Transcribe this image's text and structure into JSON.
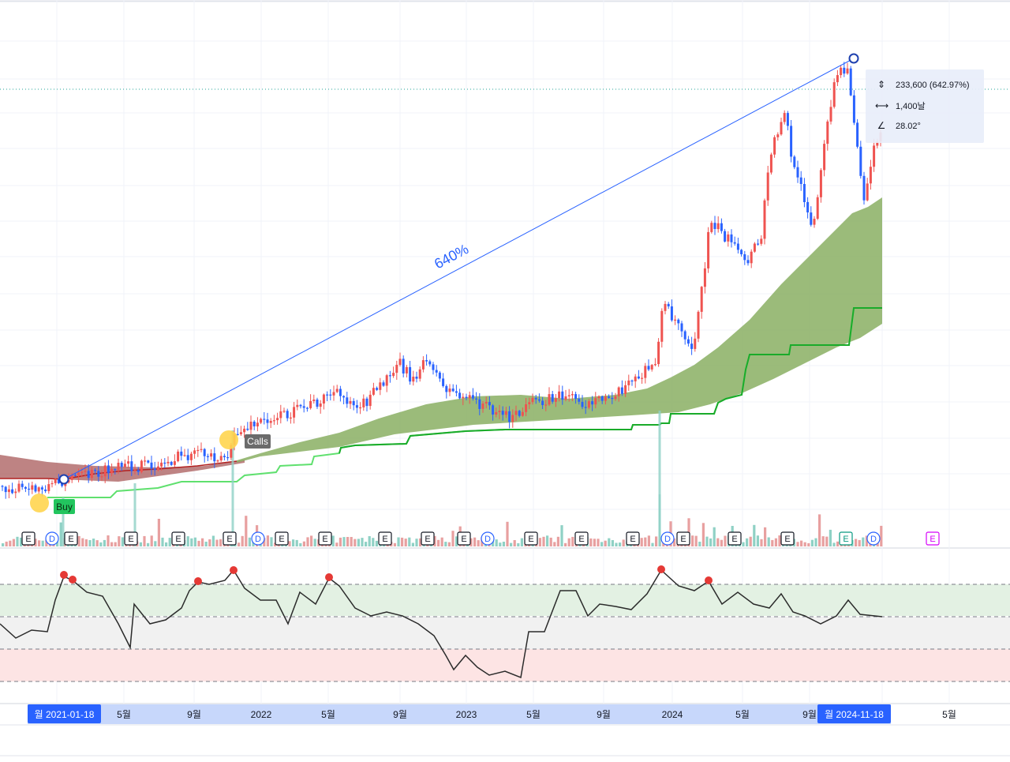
{
  "chart_data": {
    "type": "candlestick",
    "x_ticks": [
      "2021-01-18",
      "5월",
      "9월",
      "2022",
      "5월",
      "9월",
      "2023",
      "5월",
      "9월",
      "2024",
      "5월",
      "9월",
      "2024-11-18",
      "5월"
    ],
    "range_start_label": "월 2021-01-18",
    "range_end_label": "월 2024-11-18",
    "measurement": {
      "label": "640%",
      "price_change": "233,600 (642.97%)",
      "bars": "1,400날",
      "angle": "28.02°"
    },
    "markers": [
      {
        "text": "Buy",
        "color": "#22c55e"
      },
      {
        "text": "Calls",
        "color": "#6b6b6b"
      }
    ],
    "events": [
      "E",
      "D",
      "E",
      "E",
      "E",
      "E",
      "D",
      "E",
      "E",
      "E",
      "E",
      "E",
      "D",
      "E",
      "E",
      "E",
      "D",
      "E",
      "E",
      "E",
      "E",
      "D",
      "E"
    ],
    "oscillator": {
      "bands": [
        {
          "name": "overbought",
          "color": "#e3f1e3"
        },
        {
          "name": "neutral",
          "color": "#f1f1f1"
        },
        {
          "name": "oversold",
          "color": "#fde4e4"
        }
      ]
    },
    "colors": {
      "up": "#ef5350",
      "down": "#2962ff",
      "cloud_bull": "#8aaf63",
      "cloud_bear": "#a85a5a",
      "trail": "#22c55e",
      "volume_up": "#e8a0a0",
      "volume_down": "#8fd1c5",
      "trendline": "#2962ff"
    }
  }
}
